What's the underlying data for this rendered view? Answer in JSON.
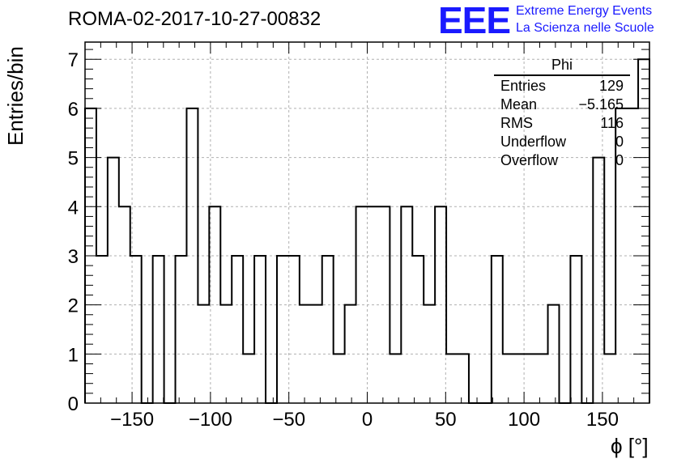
{
  "title": "ROMA-02-2017-10-27-00832",
  "logo": {
    "letters": "EEE",
    "line1": "Extreme Energy Events",
    "line2": "La Scienza nelle Scuole",
    "color": "#1a1aff"
  },
  "stats": {
    "name": "Phi",
    "rows": [
      {
        "label": "Entries",
        "value": "129"
      },
      {
        "label": "Mean",
        "value": "−5.165"
      },
      {
        "label": "RMS",
        "value": "116"
      },
      {
        "label": "Underflow",
        "value": "0"
      },
      {
        "label": "Overflow",
        "value": "0"
      }
    ]
  },
  "chart_data": {
    "type": "bar",
    "style": "step-histogram",
    "title": "ROMA-02-2017-10-27-00832",
    "xlabel": "ϕ [°]",
    "ylabel": "Entries/bin",
    "xlim": [
      -180,
      180
    ],
    "ylim": [
      0,
      7.35
    ],
    "bin_width": 7.2,
    "x_ticks": [
      -150,
      -100,
      -50,
      0,
      50,
      100,
      150
    ],
    "x_tick_labels": [
      "−150",
      "−100",
      "−50",
      "0",
      "50",
      "100",
      "150"
    ],
    "y_ticks": [
      0,
      1,
      2,
      3,
      4,
      5,
      6,
      7
    ],
    "y_tick_labels": [
      "0",
      "1",
      "2",
      "3",
      "4",
      "5",
      "6",
      "7"
    ],
    "grid": true,
    "line_color": "#000000",
    "values": [
      6,
      3,
      5,
      4,
      3,
      0,
      3,
      0,
      3,
      6,
      2,
      4,
      2,
      3,
      1,
      3,
      0,
      3,
      3,
      2,
      2,
      3,
      1,
      2,
      4,
      4,
      4,
      1,
      4,
      3,
      2,
      4,
      1,
      1,
      0,
      0,
      3,
      1,
      1,
      1,
      1,
      2,
      0,
      3,
      0,
      5,
      1,
      6,
      6,
      7
    ]
  }
}
